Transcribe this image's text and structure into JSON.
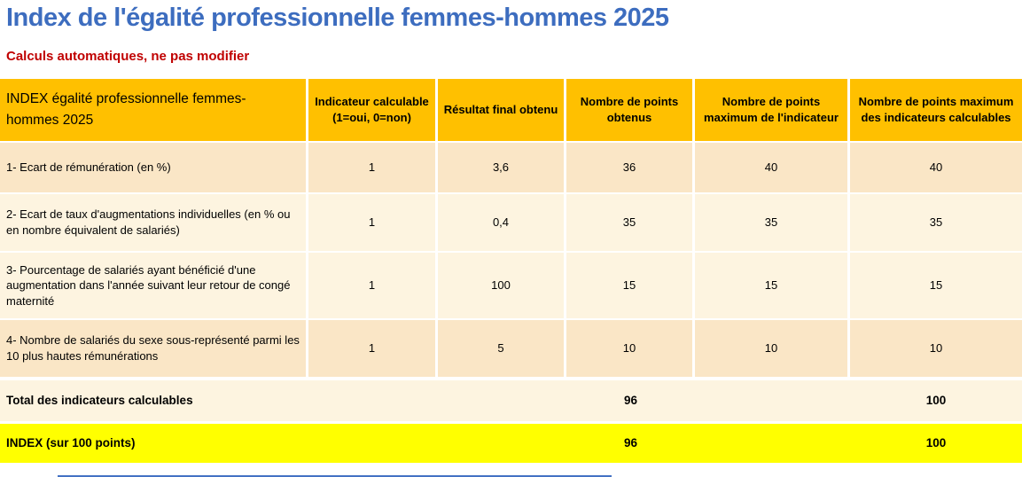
{
  "page": {
    "title": "Index de l'égalité professionnelle femmes-hommes 2025",
    "subtitle": "Calculs automatiques, ne pas modifier"
  },
  "colors": {
    "title_blue": "#3d6dbf",
    "subtitle_red": "#c00000",
    "header_bg": "#ffc000",
    "row_dark": "#fae6c6",
    "row_light": "#fdf4e0",
    "total_bg": "#fdf4e0",
    "index_bg": "#ffff00",
    "bottom_bar": "#4472c4"
  },
  "table": {
    "corner_header": "INDEX égalité professionnelle femmes-hommes 2025",
    "columns": [
      "Indicateur calculable (1=oui, 0=non)",
      "Résultat final obtenu",
      "Nombre de points obtenus",
      "Nombre de points maximum de l'indicateur",
      "Nombre de points maximum des indicateurs calculables"
    ],
    "rows": [
      {
        "label": "1- Ecart de rémunération (en %)",
        "calculable": "1",
        "resultat": "3,6",
        "points": "36",
        "max_indicateur": "40",
        "max_calculables": "40"
      },
      {
        "label": "2- Ecart de taux d'augmentations individuelles (en % ou en nombre équivalent de salariés)",
        "calculable": "1",
        "resultat": "0,4",
        "points": "35",
        "max_indicateur": "35",
        "max_calculables": "35"
      },
      {
        "label": "3- Pourcentage de salariés ayant bénéficié d'une augmentation dans l'année suivant leur retour de congé maternité",
        "calculable": "1",
        "resultat": "100",
        "points": "15",
        "max_indicateur": "15",
        "max_calculables": "15"
      },
      {
        "label": "4- Nombre de salariés du sexe sous-représenté parmi les 10 plus hautes rémunérations",
        "calculable": "1",
        "resultat": "5",
        "points": "10",
        "max_indicateur": "10",
        "max_calculables": "10"
      }
    ],
    "total_row": {
      "label": "Total des indicateurs calculables",
      "points": "96",
      "max_calculables": "100"
    },
    "index_row": {
      "label": "INDEX (sur 100 points)",
      "points": "96",
      "max_calculables": "100"
    }
  }
}
